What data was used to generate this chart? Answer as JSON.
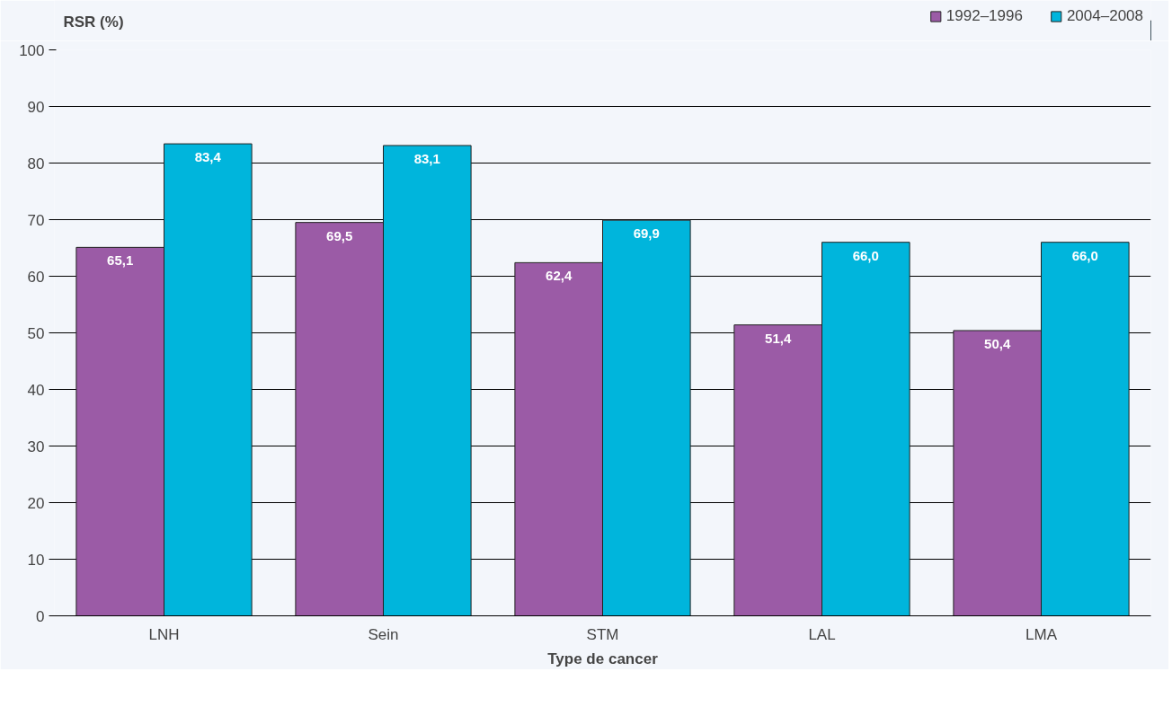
{
  "chart_data": {
    "type": "bar",
    "ylabel": "RSR (%)",
    "xlabel": "Type de cancer",
    "categories": [
      "LNH",
      "Sein",
      "STM",
      "LAL",
      "LMA"
    ],
    "series": [
      {
        "name": "1992–1996",
        "color": "#9b5ba6",
        "values": [
          65.1,
          69.5,
          62.4,
          51.4,
          50.4
        ],
        "value_labels": [
          "65,1",
          "69,5",
          "62,4",
          "51,4",
          "50,4"
        ]
      },
      {
        "name": "2004–2008",
        "color": "#00b5dc",
        "values": [
          83.4,
          83.1,
          69.9,
          66.0,
          66.0
        ],
        "value_labels": [
          "83,4",
          "83,1",
          "69,9",
          "66,0",
          "66,0"
        ]
      }
    ],
    "data_labels": true,
    "ylim": [
      0,
      100
    ],
    "yticks": [
      0,
      10,
      20,
      30,
      40,
      50,
      60,
      70,
      80,
      90,
      100
    ],
    "grid": "y",
    "legend": "top right"
  }
}
